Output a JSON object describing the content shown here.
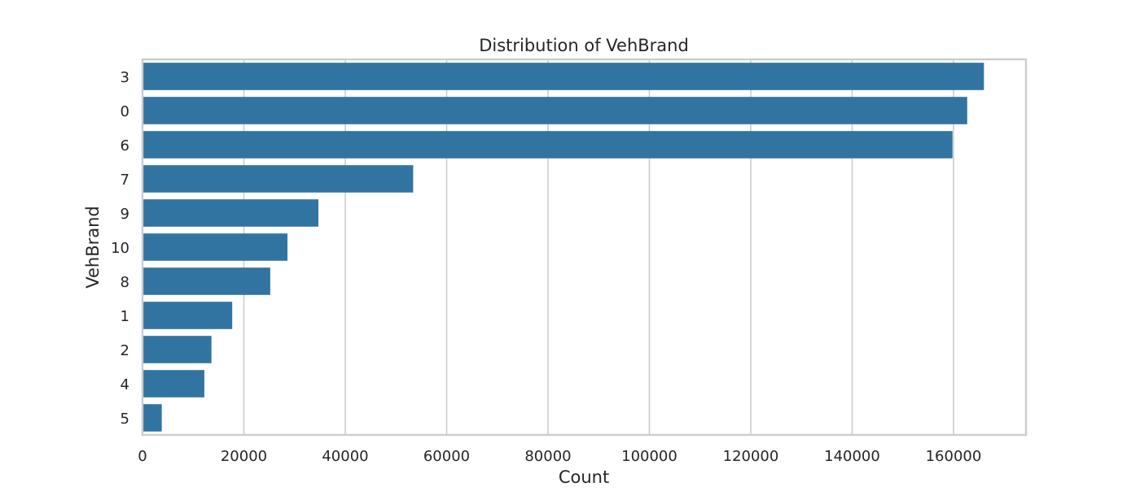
{
  "chart_data": {
    "type": "bar",
    "orientation": "horizontal",
    "title": "Distribution of VehBrand",
    "xlabel": "Count",
    "ylabel": "VehBrand",
    "categories": [
      "3",
      "0",
      "6",
      "7",
      "9",
      "10",
      "8",
      "1",
      "2",
      "4",
      "5"
    ],
    "values": [
      166000,
      162700,
      159800,
      53400,
      34700,
      28600,
      25200,
      17700,
      13600,
      12200,
      3800
    ],
    "xlim": [
      0,
      174300
    ],
    "xticks": [
      0,
      20000,
      40000,
      60000,
      80000,
      100000,
      120000,
      140000,
      160000
    ],
    "xtick_labels": [
      "0",
      "20000",
      "40000",
      "60000",
      "80000",
      "100000",
      "120000",
      "140000",
      "160000"
    ],
    "grid": "vertical",
    "colors": {
      "bar": "#3274a1",
      "grid": "#cccccc",
      "spine": "#cccccc",
      "text": "#262626"
    }
  }
}
